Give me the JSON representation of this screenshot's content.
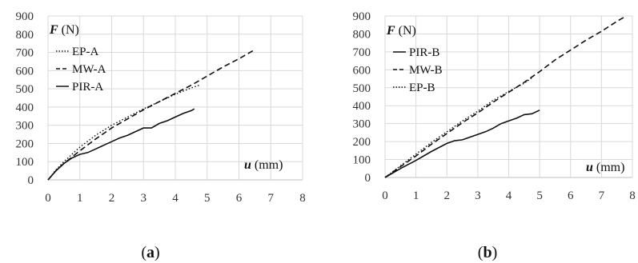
{
  "chart_data": [
    {
      "type": "line",
      "caption": "(a)",
      "caption_letter": "a",
      "ylabel_symbol": "F",
      "ylabel_unit": " (N)",
      "xlabel_symbol": "u",
      "xlabel_unit": " (mm)",
      "xlim": [
        0,
        8
      ],
      "ylim": [
        0,
        900
      ],
      "xticks": [
        0,
        1,
        2,
        3,
        4,
        5,
        6,
        7,
        8
      ],
      "yticks": [
        0,
        100,
        200,
        300,
        400,
        500,
        600,
        700,
        800,
        900
      ],
      "grid": true,
      "legend_position": "top-left",
      "series": [
        {
          "name": "EP-A",
          "style": "dotted",
          "x": [
            0,
            0.25,
            0.5,
            0.75,
            1.0,
            1.5,
            2.0,
            2.5,
            3.0,
            3.5,
            4.0,
            4.5,
            4.75
          ],
          "y": [
            0,
            55,
            100,
            140,
            180,
            245,
            300,
            345,
            390,
            430,
            470,
            505,
            520
          ]
        },
        {
          "name": "MW-A",
          "style": "dashed",
          "x": [
            0,
            0.25,
            0.5,
            0.75,
            1.0,
            1.5,
            2.0,
            2.5,
            3.0,
            3.5,
            4.0,
            4.5,
            5.0,
            5.5,
            6.0,
            6.5
          ],
          "y": [
            0,
            50,
            90,
            125,
            160,
            225,
            285,
            335,
            385,
            430,
            475,
            520,
            570,
            620,
            665,
            715
          ]
        },
        {
          "name": "PIR-A",
          "style": "solid",
          "x": [
            0,
            0.25,
            0.5,
            0.75,
            1.0,
            1.25,
            1.5,
            1.75,
            2.0,
            2.25,
            2.5,
            2.75,
            3.0,
            3.25,
            3.5,
            3.75,
            4.0,
            4.25,
            4.5,
            4.6
          ],
          "y": [
            0,
            50,
            90,
            120,
            140,
            150,
            170,
            190,
            210,
            230,
            245,
            265,
            285,
            285,
            310,
            325,
            345,
            365,
            380,
            390
          ]
        }
      ]
    },
    {
      "type": "line",
      "caption": "(b)",
      "caption_letter": "b",
      "ylabel_symbol": "F",
      "ylabel_unit": " (N)",
      "xlabel_symbol": "u",
      "xlabel_unit": " (mm)",
      "xlim": [
        0,
        8
      ],
      "ylim": [
        0,
        900
      ],
      "xticks": [
        0,
        1,
        2,
        3,
        4,
        5,
        6,
        7,
        8
      ],
      "yticks": [
        0,
        100,
        200,
        300,
        400,
        500,
        600,
        700,
        800,
        900
      ],
      "grid": true,
      "legend_position": "top-left",
      "series": [
        {
          "name": "PIR-B",
          "style": "solid",
          "x": [
            0,
            0.5,
            1.0,
            1.5,
            2.0,
            2.25,
            2.5,
            2.75,
            3.0,
            3.25,
            3.5,
            3.75,
            4.0,
            4.25,
            4.5,
            4.75,
            5.0
          ],
          "y": [
            0,
            50,
            95,
            145,
            190,
            205,
            210,
            225,
            240,
            255,
            275,
            300,
            315,
            330,
            350,
            355,
            375
          ]
        },
        {
          "name": "MW-B",
          "style": "dashed",
          "x": [
            0,
            0.5,
            1.0,
            1.5,
            2.0,
            2.5,
            3.0,
            3.5,
            4.0,
            4.5,
            5.0,
            5.5,
            6.0,
            6.5,
            7.0,
            7.5,
            7.8
          ],
          "y": [
            0,
            60,
            120,
            185,
            245,
            305,
            360,
            420,
            475,
            530,
            590,
            655,
            710,
            765,
            815,
            870,
            900
          ]
        },
        {
          "name": "EP-B",
          "style": "dotted",
          "x": [
            0,
            0.5,
            1.0,
            1.5,
            2.0,
            2.5,
            3.0,
            3.5,
            4.0,
            4.5,
            4.75
          ],
          "y": [
            0,
            65,
            130,
            195,
            255,
            315,
            370,
            430,
            480,
            525,
            555
          ]
        }
      ]
    }
  ]
}
